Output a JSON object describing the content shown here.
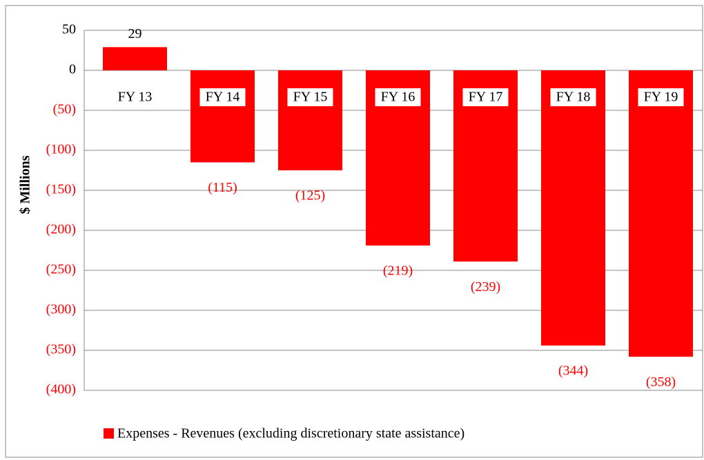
{
  "chart_data": {
    "type": "bar",
    "y_axis_label": "$ Millions",
    "categories": [
      "FY 13",
      "FY 14",
      "FY 15",
      "FY 16",
      "FY 17",
      "FY 18",
      "FY 19"
    ],
    "series": [
      {
        "name": "Expenses - Revenues (excluding discretionary state assistance)",
        "color": "#ff0000",
        "values": [
          29,
          -115,
          -125,
          -219,
          -239,
          -344,
          -358
        ],
        "value_labels": [
          "29",
          "(115)",
          "(125)",
          "(219)",
          "(239)",
          "(344)",
          "(358)"
        ]
      }
    ],
    "ylim": [
      -400,
      50
    ],
    "yticks": [
      {
        "value": -400,
        "label": "(400)"
      },
      {
        "value": -350,
        "label": "(350)"
      },
      {
        "value": -300,
        "label": "(300)"
      },
      {
        "value": -250,
        "label": "(250)"
      },
      {
        "value": -200,
        "label": "(200)"
      },
      {
        "value": -150,
        "label": "(150)"
      },
      {
        "value": -100,
        "label": "(100)"
      },
      {
        "value": -50,
        "label": "(50)"
      },
      0,
      50
    ],
    "grid": true,
    "negative_label_color": "#ff0000",
    "legend": "bottom"
  }
}
